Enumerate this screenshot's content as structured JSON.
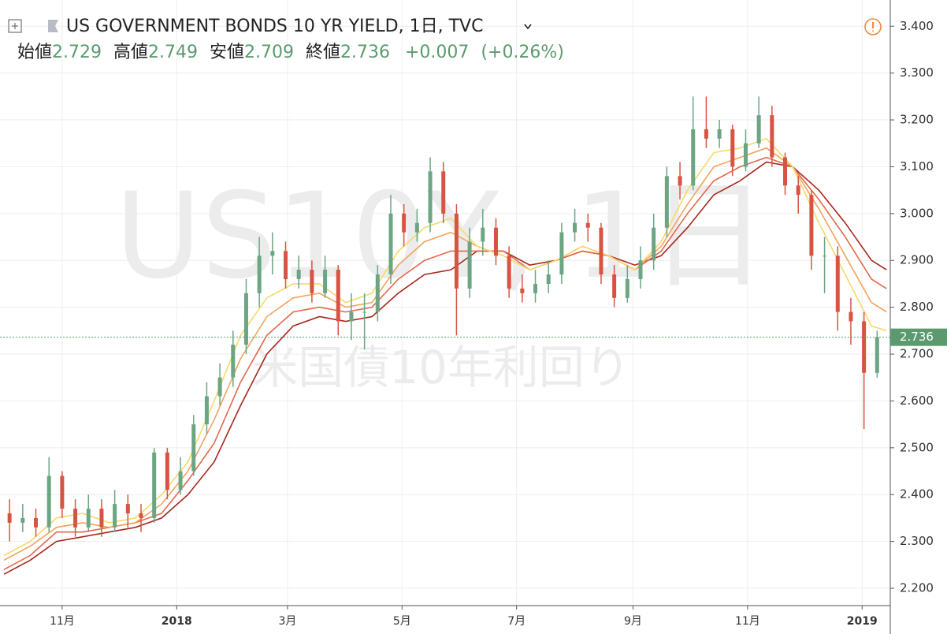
{
  "chart_data": {
    "type": "candlestick",
    "header": {
      "title": "US GOVERNMENT BONDS 10 YR YIELD, 1日, TVC",
      "open_label": "始値",
      "open": 2.729,
      "high_label": "高値",
      "high": 2.749,
      "low_label": "安値",
      "low": 2.709,
      "close_label": "終値",
      "close": 2.736,
      "change": {
        "value": 0.007,
        "label": "+0.007"
      },
      "change_pct": {
        "value": 0.26,
        "label": "(+0.26%)"
      }
    },
    "watermark": "US10Y, 1日",
    "watermark_sub": "米国債10年利回り",
    "up_color": "#6ba583",
    "down_color": "#d75442",
    "tag_color": "#5b9a6e",
    "grid": true,
    "xlim": [
      0,
      472
    ],
    "ylim": [
      2.163,
      3.456
    ],
    "xticks": [
      {
        "value": 31,
        "label": "11月"
      },
      {
        "value": 92,
        "label": "2018"
      },
      {
        "value": 151,
        "label": "3月"
      },
      {
        "value": 212,
        "label": "5月"
      },
      {
        "value": 273,
        "label": "7月"
      },
      {
        "value": 335,
        "label": "9月"
      },
      {
        "value": 396,
        "label": "11月"
      },
      {
        "value": 457,
        "label": "2019"
      }
    ],
    "yticks": [
      {
        "value": 2.2,
        "label": "2.200"
      },
      {
        "value": 2.3,
        "label": "2.300"
      },
      {
        "value": 2.4,
        "label": "2.400"
      },
      {
        "value": 2.5,
        "label": "2.500"
      },
      {
        "value": 2.6,
        "label": "2.600"
      },
      {
        "value": 2.7,
        "label": "2.700"
      },
      {
        "value": 2.8,
        "label": "2.800"
      },
      {
        "value": 2.9,
        "label": "2.900"
      },
      {
        "value": 3.0,
        "label": "3.000"
      },
      {
        "value": 3.1,
        "label": "3.100"
      },
      {
        "value": 3.2,
        "label": "3.200"
      },
      {
        "value": 3.3,
        "label": "3.300"
      },
      {
        "value": 3.4,
        "label": "3.400"
      }
    ],
    "x": [
      3,
      10,
      17,
      24,
      31,
      38,
      45,
      52,
      59,
      66,
      73,
      80,
      87,
      94,
      101,
      108,
      115,
      122,
      129,
      136,
      143,
      150,
      157,
      164,
      171,
      178,
      185,
      192,
      199,
      206,
      213,
      220,
      227,
      234,
      241,
      248,
      255,
      262,
      269,
      276,
      283,
      290,
      297,
      304,
      311,
      318,
      325,
      332,
      339,
      346,
      353,
      360,
      367,
      374,
      381,
      388,
      395,
      402,
      409,
      416,
      423,
      430,
      437,
      444,
      451,
      458,
      465
    ],
    "open": [
      2.36,
      2.34,
      2.35,
      2.33,
      2.44,
      2.37,
      2.33,
      2.37,
      2.33,
      2.38,
      2.36,
      2.35,
      2.49,
      2.41,
      2.45,
      2.55,
      2.61,
      2.65,
      2.72,
      2.83,
      2.91,
      2.92,
      2.86,
      2.88,
      2.83,
      2.88,
      2.77,
      2.79,
      2.79,
      2.87,
      3.0,
      2.96,
      2.98,
      3.09,
      3.0,
      2.84,
      2.94,
      2.97,
      2.91,
      2.84,
      2.83,
      2.85,
      2.87,
      2.96,
      2.98,
      2.97,
      2.87,
      2.82,
      2.86,
      2.9,
      2.97,
      3.08,
      3.06,
      3.18,
      3.16,
      3.18,
      3.1,
      3.15,
      3.21,
      3.12,
      3.06,
      3.04,
      2.91,
      2.91,
      2.79,
      2.77,
      2.66
    ],
    "high": [
      2.39,
      2.38,
      2.37,
      2.48,
      2.45,
      2.39,
      2.4,
      2.39,
      2.41,
      2.4,
      2.38,
      2.5,
      2.5,
      2.48,
      2.57,
      2.64,
      2.68,
      2.75,
      2.86,
      2.95,
      2.96,
      2.94,
      2.91,
      2.9,
      2.91,
      2.89,
      2.83,
      2.83,
      2.89,
      3.04,
      3.02,
      3.01,
      3.12,
      3.11,
      3.02,
      2.97,
      3.01,
      2.99,
      2.93,
      2.87,
      2.88,
      2.9,
      2.98,
      3.01,
      3.0,
      2.98,
      2.89,
      2.89,
      2.93,
      3.0,
      3.1,
      3.11,
      3.25,
      3.25,
      3.2,
      3.19,
      3.18,
      3.25,
      3.23,
      3.13,
      3.08,
      3.05,
      2.95,
      2.93,
      2.82,
      2.79,
      2.75
    ],
    "low": [
      2.3,
      2.32,
      2.31,
      2.32,
      2.35,
      2.31,
      2.32,
      2.31,
      2.32,
      2.33,
      2.32,
      2.34,
      2.39,
      2.4,
      2.44,
      2.53,
      2.59,
      2.63,
      2.7,
      2.8,
      2.87,
      2.84,
      2.84,
      2.81,
      2.82,
      2.74,
      2.73,
      2.71,
      2.77,
      2.85,
      2.93,
      2.94,
      2.96,
      2.98,
      2.74,
      2.82,
      2.91,
      2.89,
      2.82,
      2.81,
      2.81,
      2.83,
      2.85,
      2.94,
      2.94,
      2.85,
      2.8,
      2.81,
      2.84,
      2.88,
      2.95,
      3.03,
      3.05,
      3.14,
      3.14,
      3.08,
      3.09,
      3.14,
      3.1,
      3.04,
      3.0,
      2.88,
      2.83,
      2.75,
      2.72,
      2.54,
      2.65
    ],
    "close": [
      2.34,
      2.35,
      2.33,
      2.44,
      2.37,
      2.33,
      2.37,
      2.33,
      2.38,
      2.36,
      2.35,
      2.49,
      2.41,
      2.45,
      2.55,
      2.61,
      2.65,
      2.72,
      2.83,
      2.91,
      2.92,
      2.86,
      2.88,
      2.83,
      2.88,
      2.77,
      2.79,
      2.79,
      2.87,
      3.0,
      2.96,
      2.98,
      3.09,
      3.0,
      2.84,
      2.94,
      2.97,
      2.91,
      2.84,
      2.83,
      2.85,
      2.87,
      2.96,
      2.98,
      2.97,
      2.87,
      2.82,
      2.86,
      2.9,
      2.97,
      3.08,
      3.06,
      3.18,
      3.16,
      3.18,
      3.1,
      3.15,
      3.21,
      3.12,
      3.06,
      3.04,
      2.91,
      2.91,
      2.79,
      2.77,
      2.66,
      2.736
    ],
    "ma_x": [
      0,
      14,
      28,
      42,
      56,
      70,
      84,
      98,
      112,
      126,
      140,
      154,
      168,
      182,
      196,
      210,
      224,
      238,
      252,
      266,
      280,
      294,
      308,
      322,
      336,
      350,
      364,
      378,
      392,
      406,
      420,
      434,
      448,
      462,
      470
    ],
    "ma": [
      {
        "color": "#a8261c",
        "values": [
          2.23,
          2.26,
          2.3,
          2.31,
          2.32,
          2.33,
          2.35,
          2.4,
          2.47,
          2.59,
          2.7,
          2.76,
          2.78,
          2.77,
          2.78,
          2.83,
          2.87,
          2.88,
          2.92,
          2.92,
          2.89,
          2.9,
          2.92,
          2.91,
          2.89,
          2.91,
          2.97,
          3.04,
          3.07,
          3.11,
          3.1,
          3.05,
          2.98,
          2.9,
          2.88
        ]
      },
      {
        "color": "#e2694a",
        "values": [
          2.24,
          2.27,
          2.32,
          2.32,
          2.33,
          2.34,
          2.36,
          2.43,
          2.51,
          2.64,
          2.74,
          2.79,
          2.8,
          2.79,
          2.8,
          2.86,
          2.9,
          2.92,
          2.92,
          2.92,
          2.88,
          2.9,
          2.92,
          2.91,
          2.88,
          2.92,
          3.0,
          3.07,
          3.1,
          3.12,
          3.1,
          3.03,
          2.95,
          2.86,
          2.84
        ]
      },
      {
        "color": "#f3a35c",
        "values": [
          2.26,
          2.29,
          2.33,
          2.34,
          2.33,
          2.34,
          2.38,
          2.45,
          2.56,
          2.69,
          2.78,
          2.82,
          2.83,
          2.8,
          2.81,
          2.89,
          2.94,
          2.96,
          2.93,
          2.91,
          2.88,
          2.9,
          2.93,
          2.91,
          2.88,
          2.93,
          3.02,
          3.1,
          3.12,
          3.14,
          3.1,
          3.01,
          2.91,
          2.81,
          2.79
        ]
      },
      {
        "color": "#f5d96b",
        "values": [
          2.27,
          2.3,
          2.35,
          2.36,
          2.34,
          2.35,
          2.4,
          2.47,
          2.6,
          2.74,
          2.82,
          2.85,
          2.85,
          2.81,
          2.83,
          2.92,
          2.97,
          2.99,
          2.93,
          2.91,
          2.88,
          2.9,
          2.93,
          2.91,
          2.88,
          2.94,
          3.05,
          3.13,
          3.14,
          3.16,
          3.1,
          2.98,
          2.87,
          2.76,
          2.75
        ]
      }
    ]
  }
}
